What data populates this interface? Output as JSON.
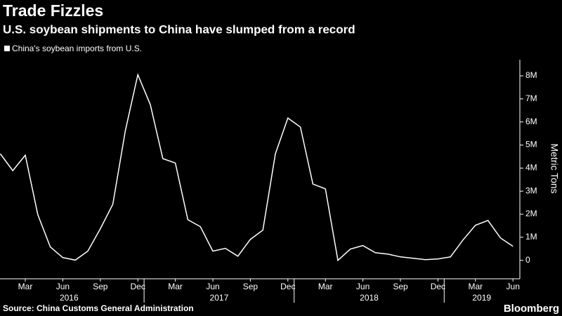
{
  "chart_data": {
    "type": "line",
    "title": "Trade Fizzles",
    "subtitle": "U.S. soybean shipments to China have slumped from a record",
    "y_axis_label": "Metric Tons",
    "source": "Source: China Customs General Administration",
    "brand": "Bloomberg",
    "categories": [
      null,
      null,
      "Mar",
      null,
      null,
      "Jun",
      null,
      null,
      "Sep",
      null,
      null,
      "Dec",
      null,
      null,
      "Mar",
      null,
      null,
      "Jun",
      null,
      null,
      "Sep",
      null,
      null,
      "Dec",
      null,
      null,
      "Mar",
      null,
      null,
      "Jun",
      null,
      null,
      "Sep",
      null,
      null,
      "Dec",
      null,
      null,
      "Mar",
      null,
      null,
      "Jun"
    ],
    "years": [
      "2016",
      "2017",
      "2018",
      "2019"
    ],
    "series": [
      {
        "name": "China's soybean imports from U.S.",
        "color": "#ffffff",
        "values": [
          4620000,
          3890000,
          4560000,
          1980000,
          580000,
          120000,
          10000,
          400000,
          1370000,
          2430000,
          5620000,
          8050000,
          6750000,
          4410000,
          4220000,
          1760000,
          1460000,
          400000,
          520000,
          180000,
          910000,
          1310000,
          4620000,
          6170000,
          5780000,
          3310000,
          3100000,
          0,
          490000,
          640000,
          330000,
          270000,
          150000,
          90000,
          30000,
          60000,
          150000,
          880000,
          1520000,
          1730000,
          970000,
          610000
        ]
      }
    ],
    "ylim": [
      -800000,
      8700000
    ],
    "yticks": [
      0,
      {
        "value": 1000000,
        "label": "1M"
      },
      {
        "value": 2000000,
        "label": "2M"
      },
      {
        "value": 3000000,
        "label": "3M"
      },
      {
        "value": 4000000,
        "label": "4M"
      },
      {
        "value": 5000000,
        "label": "5M"
      },
      {
        "value": 6000000,
        "label": "6M"
      },
      {
        "value": 7000000,
        "label": "7M"
      },
      {
        "value": 8000000,
        "label": "8M"
      }
    ],
    "legend": "top-left"
  }
}
